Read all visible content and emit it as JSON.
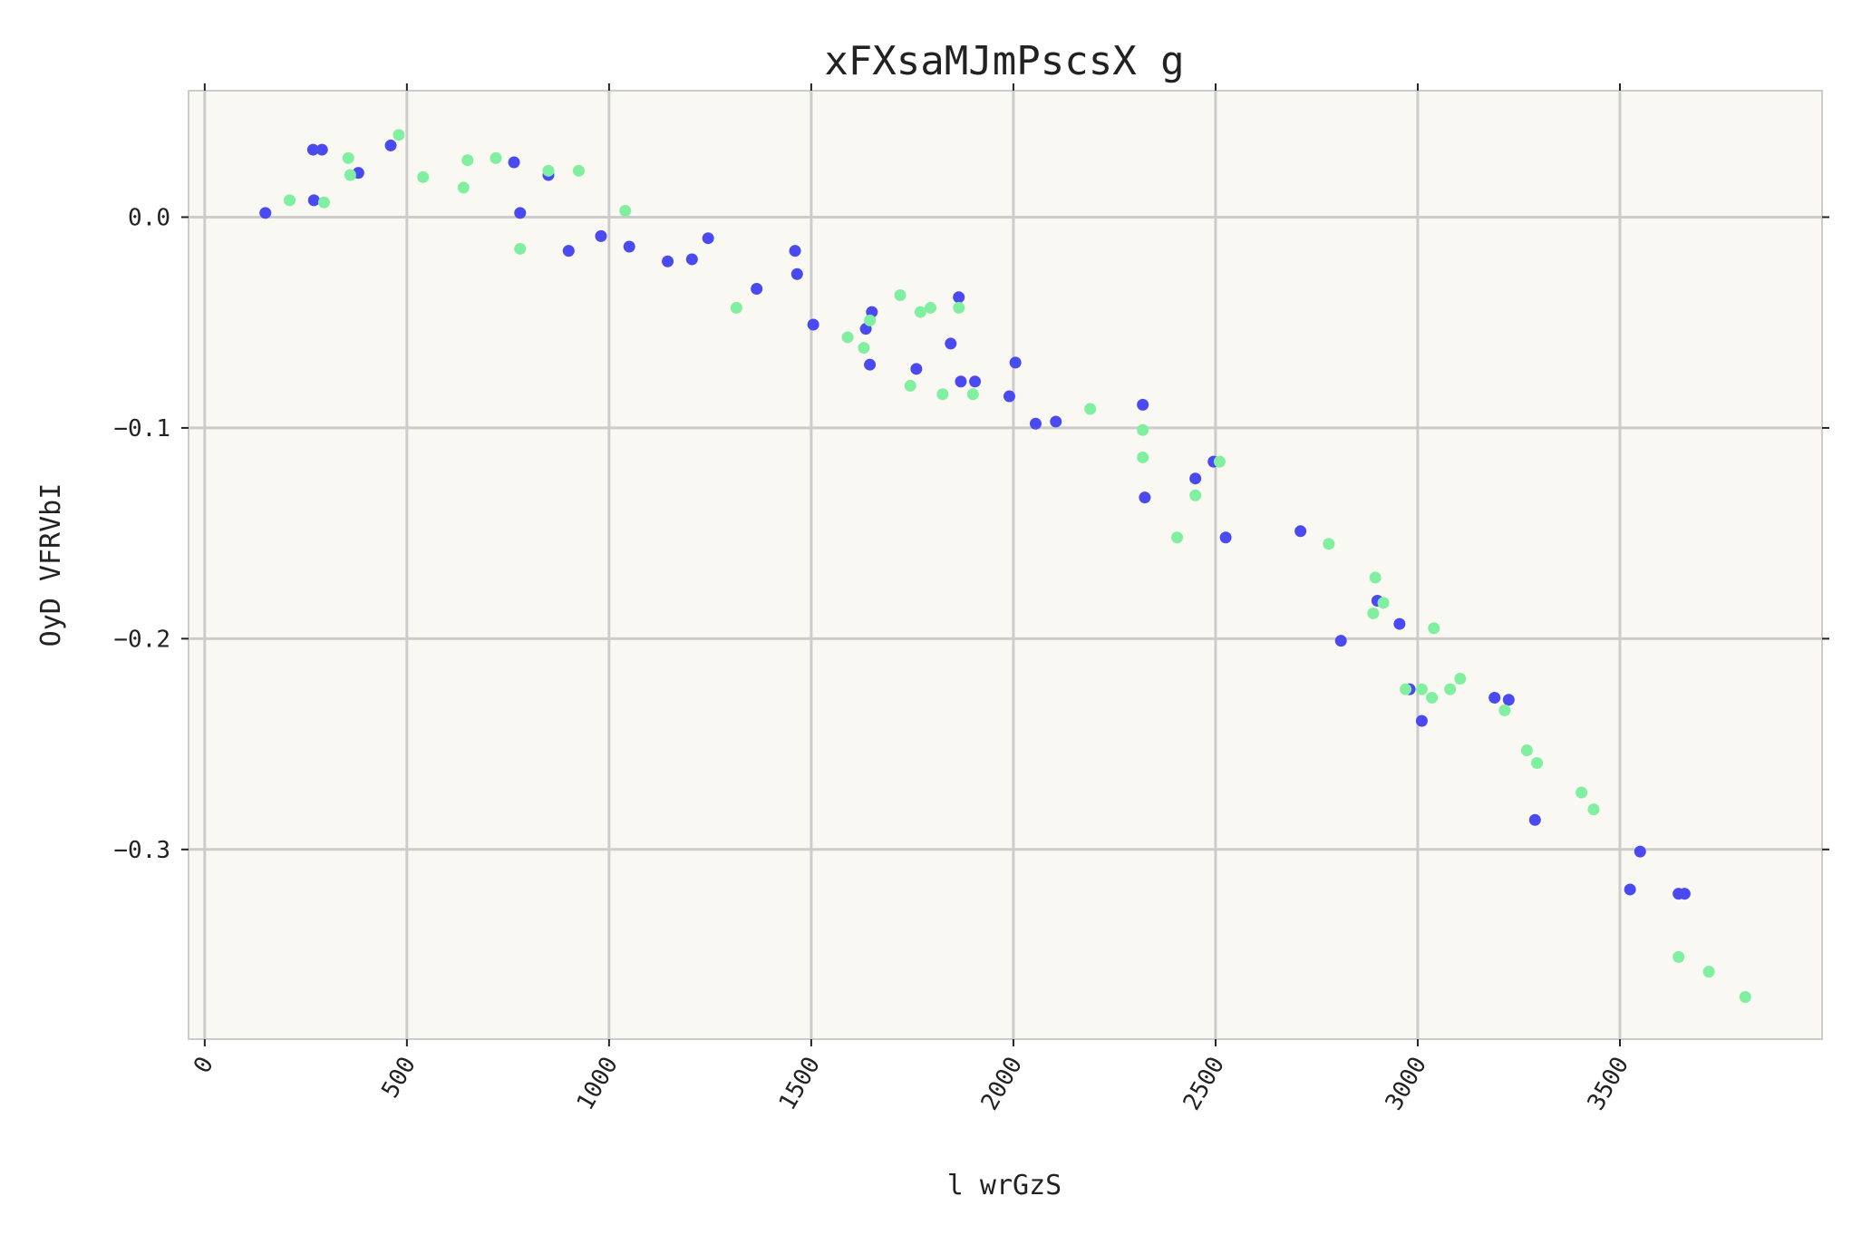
{
  "chart_data": {
    "type": "scatter",
    "title": "xFXsaMJmPscsX g",
    "xlabel": "l wrGzS",
    "ylabel": "OyD VFRVbI",
    "xlim": [
      -40,
      4000
    ],
    "ylim": [
      -0.39,
      0.06
    ],
    "xticks": [
      0,
      500,
      1000,
      1500,
      2000,
      2500,
      3000,
      3500
    ],
    "xtick_labels": [
      "0",
      "500",
      "1000",
      "1500",
      "2000",
      "2500",
      "3000",
      "3500"
    ],
    "yticks": [
      0.0,
      -0.1,
      -0.2,
      -0.3
    ],
    "ytick_labels": [
      "0.0",
      "−0.1",
      "−0.2",
      "−0.3"
    ],
    "grid": true,
    "colors": {
      "plot_bg": "#faf8f2",
      "grid": "#cccccc",
      "frame": "#cccccc"
    },
    "series": [
      {
        "color": "#4a4af0",
        "points": [
          [
            150,
            0.002
          ],
          [
            268,
            0.032
          ],
          [
            290,
            0.032
          ],
          [
            270,
            0.008
          ],
          [
            380,
            0.021
          ],
          [
            460,
            0.034
          ],
          [
            765,
            0.026
          ],
          [
            780,
            0.002
          ],
          [
            850,
            0.02
          ],
          [
            900,
            -0.016
          ],
          [
            980,
            -0.009
          ],
          [
            1050,
            -0.014
          ],
          [
            1145,
            -0.021
          ],
          [
            1205,
            -0.02
          ],
          [
            1245,
            -0.01
          ],
          [
            1365,
            -0.034
          ],
          [
            1460,
            -0.016
          ],
          [
            1465,
            -0.027
          ],
          [
            1505,
            -0.051
          ],
          [
            1635,
            -0.053
          ],
          [
            1650,
            -0.045
          ],
          [
            1645,
            -0.07
          ],
          [
            1760,
            -0.072
          ],
          [
            1845,
            -0.06
          ],
          [
            1865,
            -0.038
          ],
          [
            1870,
            -0.078
          ],
          [
            1905,
            -0.078
          ],
          [
            1990,
            -0.085
          ],
          [
            2005,
            -0.069
          ],
          [
            2055,
            -0.098
          ],
          [
            2105,
            -0.097
          ],
          [
            2320,
            -0.089
          ],
          [
            2325,
            -0.133
          ],
          [
            2450,
            -0.124
          ],
          [
            2495,
            -0.116
          ],
          [
            2525,
            -0.152
          ],
          [
            2710,
            -0.149
          ],
          [
            2810,
            -0.201
          ],
          [
            2900,
            -0.182
          ],
          [
            2955,
            -0.193
          ],
          [
            2980,
            -0.224
          ],
          [
            3010,
            -0.239
          ],
          [
            3190,
            -0.228
          ],
          [
            3225,
            -0.229
          ],
          [
            3290,
            -0.286
          ],
          [
            3525,
            -0.319
          ],
          [
            3550,
            -0.301
          ],
          [
            3645,
            -0.321
          ],
          [
            3660,
            -0.321
          ]
        ]
      },
      {
        "color": "#80f0a0",
        "points": [
          [
            210,
            0.008
          ],
          [
            295,
            0.007
          ],
          [
            355,
            0.028
          ],
          [
            360,
            0.02
          ],
          [
            480,
            0.039
          ],
          [
            540,
            0.019
          ],
          [
            640,
            0.014
          ],
          [
            650,
            0.027
          ],
          [
            720,
            0.028
          ],
          [
            780,
            -0.015
          ],
          [
            850,
            0.022
          ],
          [
            925,
            0.022
          ],
          [
            1040,
            0.003
          ],
          [
            1315,
            -0.043
          ],
          [
            1590,
            -0.057
          ],
          [
            1630,
            -0.062
          ],
          [
            1645,
            -0.049
          ],
          [
            1720,
            -0.037
          ],
          [
            1745,
            -0.08
          ],
          [
            1770,
            -0.045
          ],
          [
            1795,
            -0.043
          ],
          [
            1825,
            -0.084
          ],
          [
            1865,
            -0.043
          ],
          [
            1900,
            -0.084
          ],
          [
            2190,
            -0.091
          ],
          [
            2320,
            -0.101
          ],
          [
            2320,
            -0.114
          ],
          [
            2405,
            -0.152
          ],
          [
            2450,
            -0.132
          ],
          [
            2510,
            -0.116
          ],
          [
            2780,
            -0.155
          ],
          [
            2890,
            -0.188
          ],
          [
            2895,
            -0.171
          ],
          [
            2915,
            -0.183
          ],
          [
            2970,
            -0.224
          ],
          [
            3010,
            -0.224
          ],
          [
            3035,
            -0.228
          ],
          [
            3040,
            -0.195
          ],
          [
            3080,
            -0.224
          ],
          [
            3105,
            -0.219
          ],
          [
            3215,
            -0.234
          ],
          [
            3270,
            -0.253
          ],
          [
            3295,
            -0.259
          ],
          [
            3405,
            -0.273
          ],
          [
            3435,
            -0.281
          ],
          [
            3645,
            -0.351
          ],
          [
            3720,
            -0.358
          ],
          [
            3810,
            -0.37
          ]
        ]
      }
    ]
  }
}
